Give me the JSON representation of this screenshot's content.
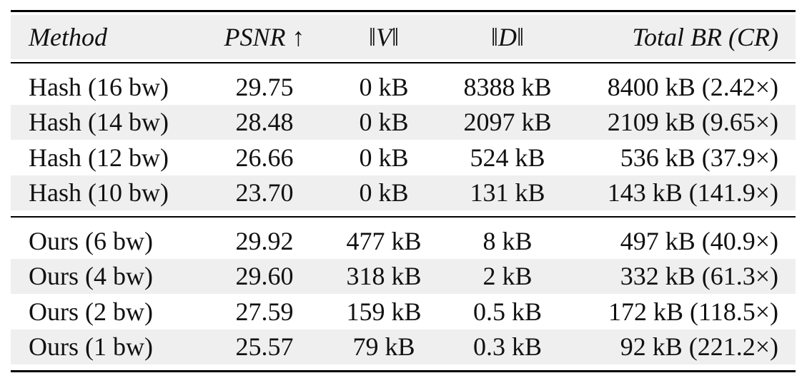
{
  "header": [
    "Method",
    "PSNR ↑",
    "‖V‖",
    "‖D‖",
    "Total BR (CR)"
  ],
  "groups": [
    [
      [
        "Hash (16 bw)",
        "29.75",
        "0 kB",
        "8388 kB",
        "8400 kB (2.42×)"
      ],
      [
        "Hash (14 bw)",
        "28.48",
        "0 kB",
        "2097 kB",
        "2109 kB (9.65×)"
      ],
      [
        "Hash (12 bw)",
        "26.66",
        "0 kB",
        "524 kB",
        "536 kB (37.9×)"
      ],
      [
        "Hash (10 bw)",
        "23.70",
        "0 kB",
        "131 kB",
        "143 kB (141.9×)"
      ]
    ],
    [
      [
        "Ours (6 bw)",
        "29.92",
        "477 kB",
        "8 kB",
        "497 kB (40.9×)"
      ],
      [
        "Ours (4 bw)",
        "29.60",
        "318 kB",
        "2 kB",
        "332 kB (61.3×)"
      ],
      [
        "Ours (2 bw)",
        "27.59",
        "159 kB",
        "0.5 kB",
        "172 kB (118.5×)"
      ],
      [
        "Ours (1 bw)",
        "25.57",
        "79 kB",
        "0.3 kB",
        "92 kB (221.2×)"
      ]
    ]
  ]
}
